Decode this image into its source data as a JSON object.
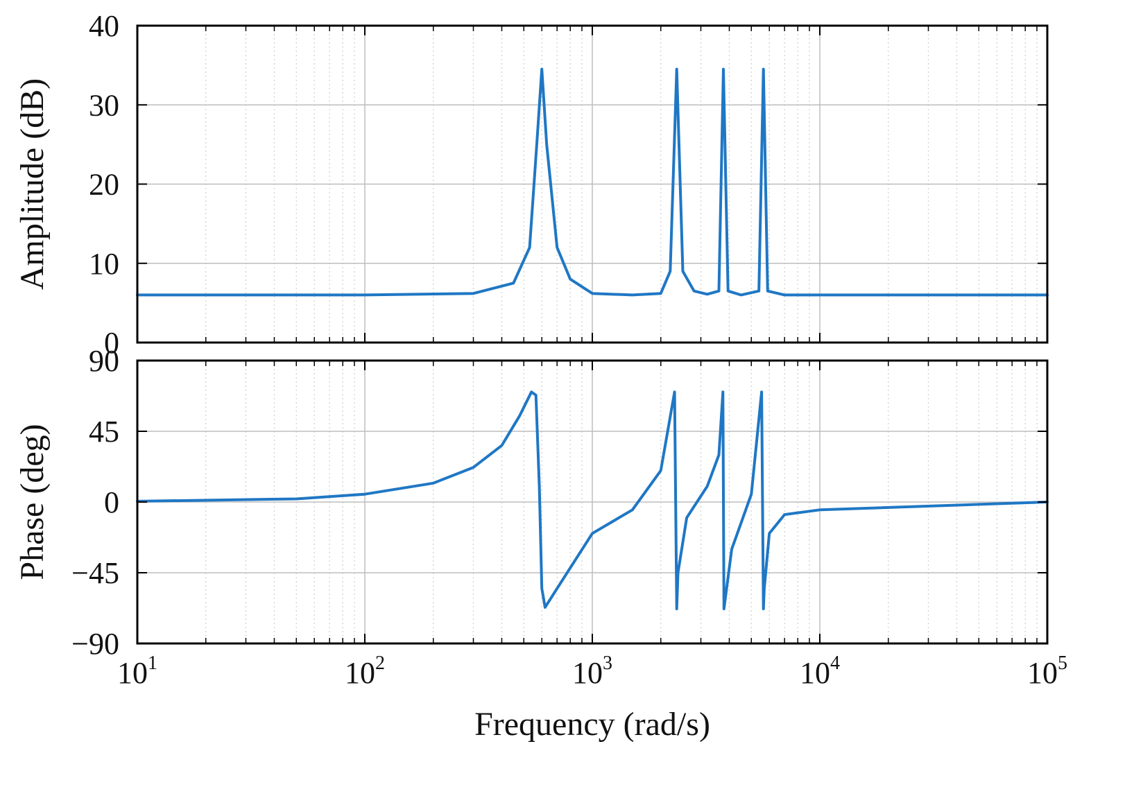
{
  "chart_data": [
    {
      "type": "line",
      "panel": "top",
      "ylabel": "Amplitude  (dB)",
      "xscale": "log",
      "xlim": [
        10,
        100000
      ],
      "ylim": [
        0,
        40
      ],
      "yticks": [
        "0",
        "10",
        "20",
        "30",
        "40"
      ],
      "yticks_values": [
        0,
        10,
        20,
        30,
        40
      ],
      "grid": true,
      "series": [
        {
          "name": "Amplitude",
          "color": "#1f77c4",
          "x": [
            10,
            100,
            300,
            450,
            530,
            570,
            600,
            630,
            700,
            800,
            1000,
            1500,
            2000,
            2200,
            2350,
            2500,
            2800,
            3200,
            3600,
            3770,
            3950,
            4500,
            5400,
            5650,
            5900,
            7000,
            10000,
            100000
          ],
          "y": [
            6.0,
            6.0,
            6.2,
            7.5,
            12.0,
            25.0,
            34.5,
            25.0,
            12.0,
            8.0,
            6.2,
            6.0,
            6.2,
            9.0,
            34.5,
            9.0,
            6.5,
            6.1,
            6.5,
            34.5,
            6.5,
            6.0,
            6.5,
            34.5,
            6.5,
            6.0,
            6.0,
            6.0
          ]
        }
      ]
    },
    {
      "type": "line",
      "panel": "bottom",
      "ylabel": "Phase  (deg)",
      "xlabel": "Frequency  (rad/s)",
      "xscale": "log",
      "xlim": [
        10,
        100000
      ],
      "ylim": [
        -90,
        90
      ],
      "yticks": [
        "−90",
        "−45",
        "0",
        "45",
        "90"
      ],
      "yticks_values": [
        -90,
        -45,
        0,
        45,
        90
      ],
      "xticks": [
        10,
        100,
        1000,
        10000,
        100000
      ],
      "xtick_base": "10",
      "xtick_exponents": [
        "1",
        "2",
        "3",
        "4",
        "5"
      ],
      "grid": true,
      "series": [
        {
          "name": "Phase",
          "color": "#1f77c4",
          "x": [
            10,
            50,
            100,
            200,
            300,
            400,
            480,
            540,
            565,
            585,
            600,
            620,
            700,
            1000,
            1500,
            2000,
            2300,
            2350,
            2380,
            2600,
            3200,
            3600,
            3750,
            3790,
            4100,
            5000,
            5550,
            5650,
            5700,
            6000,
            7000,
            10000,
            100000
          ],
          "y": [
            0.5,
            2,
            5,
            12,
            22,
            36,
            55,
            70,
            68,
            10,
            -55,
            -67,
            -55,
            -20,
            -5,
            20,
            70,
            -68,
            -45,
            -10,
            10,
            30,
            70,
            -68,
            -30,
            5,
            70,
            -68,
            -55,
            -20,
            -8,
            -5,
            0
          ]
        }
      ]
    }
  ]
}
